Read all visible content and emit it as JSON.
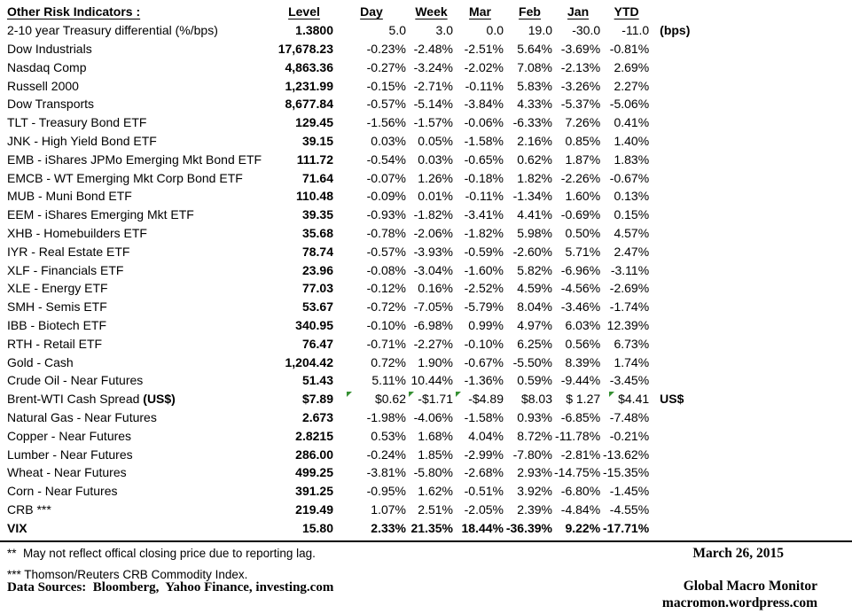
{
  "table": {
    "title": "Other Risk Indicators :",
    "columns": [
      "Level",
      "Day",
      "Week",
      "Mar",
      "Feb",
      "Jan",
      "YTD"
    ],
    "rows": [
      {
        "label": "2-10 year Treasury differential (%/bps)",
        "level": "1.3800",
        "values": [
          "5.0",
          "3.0",
          "0.0",
          "19.0",
          "-30.0",
          "-11.0"
        ],
        "suffix": "(bps)"
      },
      {
        "label": "Dow Industrials",
        "level": "17,678.23",
        "values": [
          "-0.23%",
          "-2.48%",
          "-2.51%",
          "5.64%",
          "-3.69%",
          "-0.81%"
        ]
      },
      {
        "label": "Nasdaq Comp",
        "level": "4,863.36",
        "values": [
          "-0.27%",
          "-3.24%",
          "-2.02%",
          "7.08%",
          "-2.13%",
          "2.69%"
        ]
      },
      {
        "label": "Russell 2000",
        "level": "1,231.99",
        "values": [
          "-0.15%",
          "-2.71%",
          "-0.11%",
          "5.83%",
          "-3.26%",
          "2.27%"
        ]
      },
      {
        "label": "Dow Transports",
        "level": "8,677.84",
        "values": [
          "-0.57%",
          "-5.14%",
          "-3.84%",
          "4.33%",
          "-5.37%",
          "-5.06%"
        ]
      },
      {
        "label": "TLT - Treasury Bond ETF",
        "level": "129.45",
        "values": [
          "-1.56%",
          "-1.57%",
          "-0.06%",
          "-6.33%",
          "7.26%",
          "0.41%"
        ]
      },
      {
        "label": "JNK - High Yield Bond ETF",
        "level": "39.15",
        "values": [
          "0.03%",
          "0.05%",
          "-1.58%",
          "2.16%",
          "0.85%",
          "1.40%"
        ]
      },
      {
        "label": "EMB - iShares JPMo Emerging Mkt Bond ETF",
        "level": "111.72",
        "values": [
          "-0.54%",
          "0.03%",
          "-0.65%",
          "0.62%",
          "1.87%",
          "1.83%"
        ]
      },
      {
        "label": "EMCB - WT Emerging Mkt Corp Bond ETF",
        "level": "71.64",
        "values": [
          "-0.07%",
          "1.26%",
          "-0.18%",
          "1.82%",
          "-2.26%",
          "-0.67%"
        ]
      },
      {
        "label": "MUB - Muni Bond ETF",
        "level": "110.48",
        "values": [
          "-0.09%",
          "0.01%",
          "-0.11%",
          "-1.34%",
          "1.60%",
          "0.13%"
        ]
      },
      {
        "label": "EEM - iShares Emerging Mkt ETF",
        "level": "39.35",
        "values": [
          "-0.93%",
          "-1.82%",
          "-3.41%",
          "4.41%",
          "-0.69%",
          "0.15%"
        ]
      },
      {
        "label": "XHB - Homebuilders ETF",
        "level": "35.68",
        "values": [
          "-0.78%",
          "-2.06%",
          "-1.82%",
          "5.98%",
          "0.50%",
          "4.57%"
        ]
      },
      {
        "label": "IYR - Real Estate ETF",
        "level": "78.74",
        "values": [
          "-0.57%",
          "-3.93%",
          "-0.59%",
          "-2.60%",
          "5.71%",
          "2.47%"
        ]
      },
      {
        "label": "XLF - Financials ETF",
        "level": "23.96",
        "values": [
          "-0.08%",
          "-3.04%",
          "-1.60%",
          "5.82%",
          "-6.96%",
          "-3.11%"
        ]
      },
      {
        "label": "XLE - Energy ETF",
        "level": "77.03",
        "values": [
          "-0.12%",
          "0.16%",
          "-2.52%",
          "4.59%",
          "-4.56%",
          "-2.69%"
        ]
      },
      {
        "label": "SMH - Semis ETF",
        "level": "53.67",
        "values": [
          "-0.72%",
          "-7.05%",
          "-5.79%",
          "8.04%",
          "-3.46%",
          "-1.74%"
        ]
      },
      {
        "label": "IBB - Biotech ETF",
        "level": "340.95",
        "values": [
          "-0.10%",
          "-6.98%",
          "0.99%",
          "4.97%",
          "6.03%",
          "12.39%"
        ]
      },
      {
        "label": "RTH - Retail ETF",
        "level": "76.47",
        "values": [
          "-0.71%",
          "-2.27%",
          "-0.10%",
          "6.25%",
          "0.56%",
          "6.73%"
        ]
      },
      {
        "label": "Gold - Cash",
        "level": "1,204.42",
        "values": [
          "0.72%",
          "1.90%",
          "-0.67%",
          "-5.50%",
          "8.39%",
          "1.74%"
        ]
      },
      {
        "label": "Crude Oil - Near Futures",
        "level": "51.43",
        "values": [
          "5.11%",
          "10.44%",
          "-1.36%",
          "0.59%",
          "-9.44%",
          "-3.45%"
        ]
      },
      {
        "label": "Brent-WTI Cash Spread ",
        "label_bold": "(US$)",
        "level": "$7.89",
        "values": [
          "$0.62",
          "-$1.71",
          "-$4.89",
          "$8.03",
          "$ 1.27",
          "$4.41"
        ],
        "suffix": "US$",
        "flags": [
          1,
          1,
          1,
          0,
          0,
          1
        ]
      },
      {
        "label": "Natural Gas - Near Futures",
        "level": "2.673",
        "values": [
          "-1.98%",
          "-4.06%",
          "-1.58%",
          "0.93%",
          "-6.85%",
          "-7.48%"
        ]
      },
      {
        "label": "Copper - Near Futures",
        "level": "2.8215",
        "values": [
          "0.53%",
          "1.68%",
          "4.04%",
          "8.72%",
          "-11.78%",
          "-0.21%"
        ]
      },
      {
        "label": "Lumber - Near Futures",
        "level": "286.00",
        "values": [
          "-0.24%",
          "1.85%",
          "-2.99%",
          "-7.80%",
          "-2.81%",
          "-13.62%"
        ]
      },
      {
        "label": "Wheat - Near Futures",
        "level": "499.25",
        "values": [
          "-3.81%",
          "-5.80%",
          "-2.68%",
          "2.93%",
          "-14.75%",
          "-15.35%"
        ]
      },
      {
        "label": "Corn - Near Futures",
        "level": "391.25",
        "values": [
          "-0.95%",
          "1.62%",
          "-0.51%",
          "3.92%",
          "-6.80%",
          "-1.45%"
        ]
      },
      {
        "label": "CRB ***",
        "level": "219.49",
        "values": [
          "1.07%",
          "2.51%",
          "-2.05%",
          "2.39%",
          "-4.84%",
          "-4.55%"
        ]
      },
      {
        "label": "VIX",
        "level": "15.80",
        "values": [
          "2.33%",
          "21.35%",
          "18.44%",
          "-36.39%",
          "9.22%",
          "-17.71%"
        ],
        "bold": true
      }
    ]
  },
  "footer": {
    "note_lag": "**  May not reflect offical closing price due to reporting lag.",
    "note_crb": "*** Thomson/Reuters CRB Commodity Index.",
    "sources": "Data Sources:  Bloomberg,  Yahoo Finance, investing.com",
    "date": "March 26, 2015",
    "brand": "Global Macro Monitor",
    "url": "macromon.wordpress.com"
  },
  "colors": {
    "flag_green": "#359033",
    "text": "#000000"
  }
}
